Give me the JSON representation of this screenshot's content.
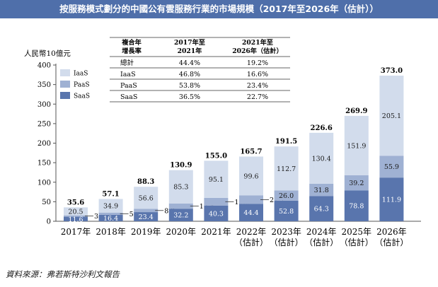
{
  "title": "按服務模式劃分的中國公有雲服務行業的市場規模（2017年至2026年（估計））",
  "source": "資料來源：弗若斯特沙利文報告",
  "colors": {
    "title_bg": "#4f6faa",
    "SaaS": "#5975ad",
    "PaaS": "#9fb1d3",
    "IaaS": "#d2dcec"
  },
  "chart_data": {
    "type": "bar",
    "stacked": true,
    "ylabel": "人民幣10億元",
    "ylim": [
      0,
      400
    ],
    "yticks": [
      0,
      50,
      100,
      150,
      200,
      250,
      300,
      350,
      400
    ],
    "categories": [
      [
        "2017年"
      ],
      [
        "2018年"
      ],
      [
        "2019年"
      ],
      [
        "2020年"
      ],
      [
        "2021年"
      ],
      [
        "2022年",
        "（估計）"
      ],
      [
        "2023年",
        "（估計）"
      ],
      [
        "2024年",
        "（估計）"
      ],
      [
        "2025年",
        "（估計）"
      ],
      [
        "2026年",
        "（估計）"
      ]
    ],
    "series": [
      {
        "name": "SaaS",
        "values": [
          11.6,
          16.4,
          23.4,
          32.2,
          40.3,
          44.4,
          52.8,
          64.3,
          78.8,
          111.9
        ],
        "labels": [
          "11.6",
          "16.4",
          "23.4",
          "32.2",
          "40.3",
          "44.4",
          "52.8",
          "64.3",
          "78.8",
          "111.9"
        ]
      },
      {
        "name": "PaaS",
        "values": [
          3.5,
          5.8,
          8.3,
          13.4,
          19.6,
          21.7,
          26.0,
          31.8,
          39.2,
          55.9
        ],
        "labels": [
          "3.5",
          "5.8",
          "8.3",
          "13.4",
          "19.6",
          "21.7",
          "26.0",
          "31.8",
          "39.2",
          "55.9"
        ]
      },
      {
        "name": "IaaS",
        "values": [
          20.5,
          34.9,
          56.6,
          85.3,
          95.1,
          99.6,
          112.7,
          130.4,
          151.9,
          205.1
        ],
        "labels": [
          "20.5",
          "34.9",
          "56.6",
          "85.3",
          "95.1",
          "99.6",
          "112.7",
          "130.4",
          "151.9",
          "205.1"
        ]
      }
    ],
    "totals": [
      "35.6",
      "57.1",
      "88.3",
      "130.9",
      "155.0",
      "165.7",
      "191.5",
      "226.6",
      "269.9",
      "373.0"
    ],
    "legend": {
      "position": "top-left",
      "entries": [
        "IaaS",
        "PaaS",
        "SaaS"
      ]
    },
    "cagr_table": {
      "headers": [
        [
          "複合年",
          "增長率"
        ],
        [
          "2017年至",
          "2021年"
        ],
        [
          "2021年至",
          "2026年（估計）"
        ]
      ],
      "rows": [
        [
          "總計",
          "44.4%",
          "19.2%"
        ],
        [
          "IaaS",
          "46.8%",
          "16.6%"
        ],
        [
          "PaaS",
          "53.8%",
          "23.4%"
        ],
        [
          "SaaS",
          "36.5%",
          "22.7%"
        ]
      ]
    }
  }
}
